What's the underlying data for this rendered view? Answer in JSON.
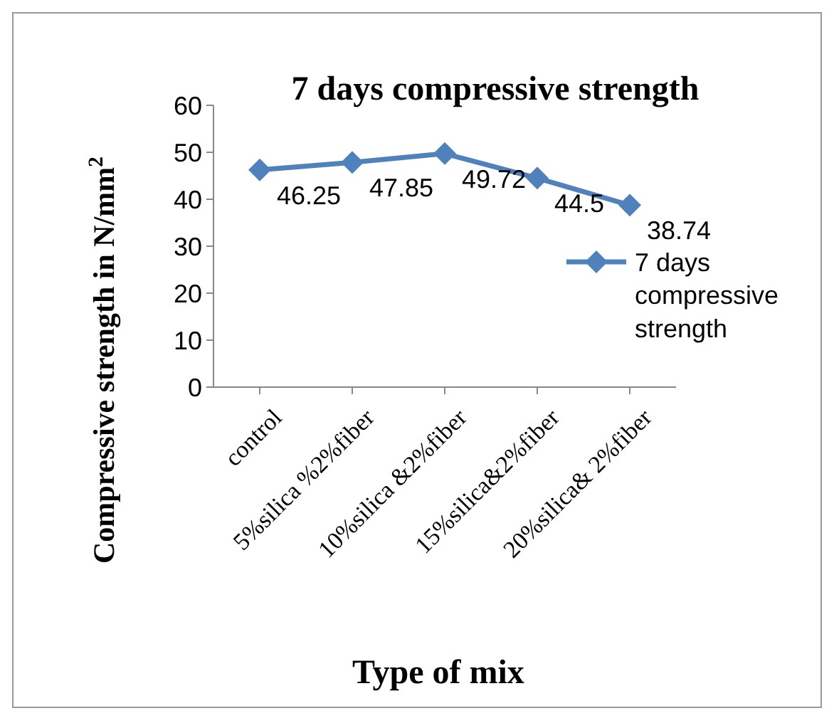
{
  "chart_data": {
    "type": "line",
    "title": "7 days compressive strength",
    "xlabel": "Type of mix",
    "ylabel": "Compressive strength in N/mm$^{2}$",
    "categories": [
      "control",
      "5%silica %2%fiber",
      "10%silica &2%fiber",
      "15%silica&2%fiber",
      "20%silica& 2%fiber"
    ],
    "series": [
      {
        "name": "7 days compressive strength",
        "color": "#4f81bd",
        "values": [
          46.25,
          47.85,
          49.72,
          44.5,
          38.74
        ]
      }
    ],
    "ylim": [
      0,
      60
    ],
    "yticks": [
      0,
      10,
      20,
      30,
      40,
      50,
      60
    ],
    "data_labels": true,
    "marker": "diamond",
    "legend": "right",
    "grid": false
  }
}
